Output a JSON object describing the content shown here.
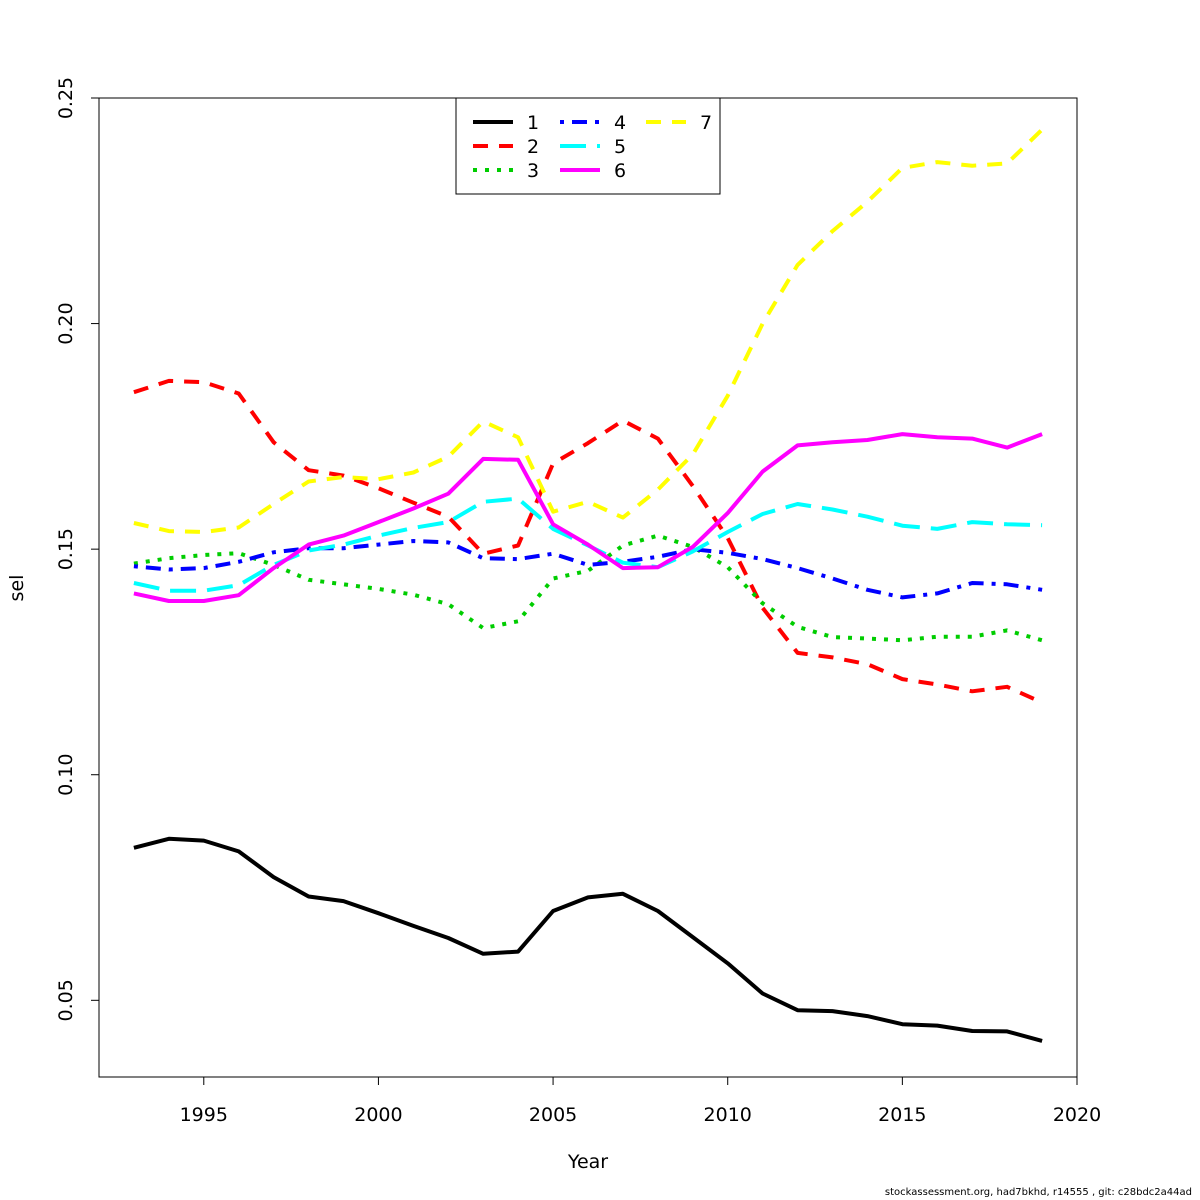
{
  "chart_data": {
    "type": "line",
    "xlabel": "Year",
    "ylabel": "sel",
    "xlim": [
      1992,
      2020
    ],
    "ylim": [
      0.033,
      0.25
    ],
    "x_ticks": [
      1995,
      2000,
      2005,
      2010,
      2015,
      2020
    ],
    "y_ticks": [
      0.05,
      0.1,
      0.15,
      0.2,
      0.25
    ],
    "y_tick_labels": [
      "0.05",
      "0.10",
      "0.15",
      "0.20",
      "0.25"
    ],
    "grid": false,
    "legend_position": "top-center",
    "x": [
      1993,
      1994,
      1995,
      1996,
      1997,
      1998,
      1999,
      2000,
      2001,
      2002,
      2003,
      2004,
      2005,
      2006,
      2007,
      2008,
      2009,
      2010,
      2011,
      2012,
      2013,
      2014,
      2015,
      2016,
      2017,
      2018,
      2019
    ],
    "series": [
      {
        "name": "1",
        "color": "#000000",
        "dash": "solid",
        "values": [
          0.0838,
          0.0858,
          0.0854,
          0.083,
          0.0773,
          0.073,
          0.072,
          0.0693,
          0.0665,
          0.0638,
          0.0603,
          0.0608,
          0.0698,
          0.0728,
          0.0736,
          0.0698,
          0.064,
          0.0582,
          0.0515,
          0.0478,
          0.0476,
          0.0465,
          0.0447,
          0.0444,
          0.0432,
          0.0431,
          0.041
        ]
      },
      {
        "name": "2",
        "color": "#ff0000",
        "dash": "dashed",
        "values": [
          0.1848,
          0.1873,
          0.187,
          0.1845,
          0.1737,
          0.1675,
          0.1663,
          0.1635,
          0.1603,
          0.1572,
          0.149,
          0.1508,
          0.169,
          0.1735,
          0.1785,
          0.1745,
          0.164,
          0.1525,
          0.137,
          0.127,
          0.126,
          0.1245,
          0.1212,
          0.12,
          0.1185,
          0.1195,
          0.116
        ]
      },
      {
        "name": "3",
        "color": "#00cd00",
        "dash": "dotted",
        "values": [
          0.1468,
          0.148,
          0.1487,
          0.1491,
          0.1465,
          0.1432,
          0.1422,
          0.1412,
          0.1399,
          0.1378,
          0.1325,
          0.134,
          0.1435,
          0.1452,
          0.1508,
          0.153,
          0.1505,
          0.146,
          0.138,
          0.1328,
          0.1305,
          0.1302,
          0.1298,
          0.1306,
          0.1306,
          0.132,
          0.1298
        ]
      },
      {
        "name": "4",
        "color": "#0000ff",
        "dash": "dotdash",
        "values": [
          0.1462,
          0.1455,
          0.1458,
          0.1472,
          0.1493,
          0.1502,
          0.1502,
          0.151,
          0.1518,
          0.1515,
          0.148,
          0.1478,
          0.149,
          0.1465,
          0.1472,
          0.1483,
          0.15,
          0.1492,
          0.1478,
          0.1458,
          0.1435,
          0.141,
          0.1393,
          0.1402,
          0.1425,
          0.1422,
          0.141
        ]
      },
      {
        "name": "5",
        "color": "#00ffff",
        "dash": "longdash",
        "values": [
          0.1425,
          0.1408,
          0.1408,
          0.142,
          0.1465,
          0.1497,
          0.151,
          0.153,
          0.1547,
          0.156,
          0.1605,
          0.1612,
          0.1545,
          0.1508,
          0.147,
          0.146,
          0.1495,
          0.1538,
          0.1578,
          0.16,
          0.1588,
          0.1572,
          0.1552,
          0.1545,
          0.156,
          0.1555,
          0.1553
        ]
      },
      {
        "name": "6",
        "color": "#ff00ff",
        "dash": "solid",
        "values": [
          0.1402,
          0.1385,
          0.1385,
          0.1398,
          0.1458,
          0.151,
          0.153,
          0.156,
          0.159,
          0.1623,
          0.17,
          0.1698,
          0.1555,
          0.151,
          0.1458,
          0.146,
          0.1505,
          0.158,
          0.1672,
          0.173,
          0.1737,
          0.1742,
          0.1755,
          0.1748,
          0.1745,
          0.1725,
          0.1755
        ]
      },
      {
        "name": "7",
        "color": "#ffff00",
        "dash": "dashed",
        "values": [
          0.1558,
          0.154,
          0.1538,
          0.1548,
          0.16,
          0.165,
          0.166,
          0.1655,
          0.167,
          0.1705,
          0.1783,
          0.1748,
          0.1583,
          0.1605,
          0.157,
          0.1632,
          0.171,
          0.184,
          0.2,
          0.213,
          0.2205,
          0.227,
          0.2345,
          0.2358,
          0.235,
          0.2355,
          0.243
        ]
      }
    ]
  },
  "footer": "stockassessment.org, had7bkhd, r14555 , git: c28bdc2a44ad"
}
